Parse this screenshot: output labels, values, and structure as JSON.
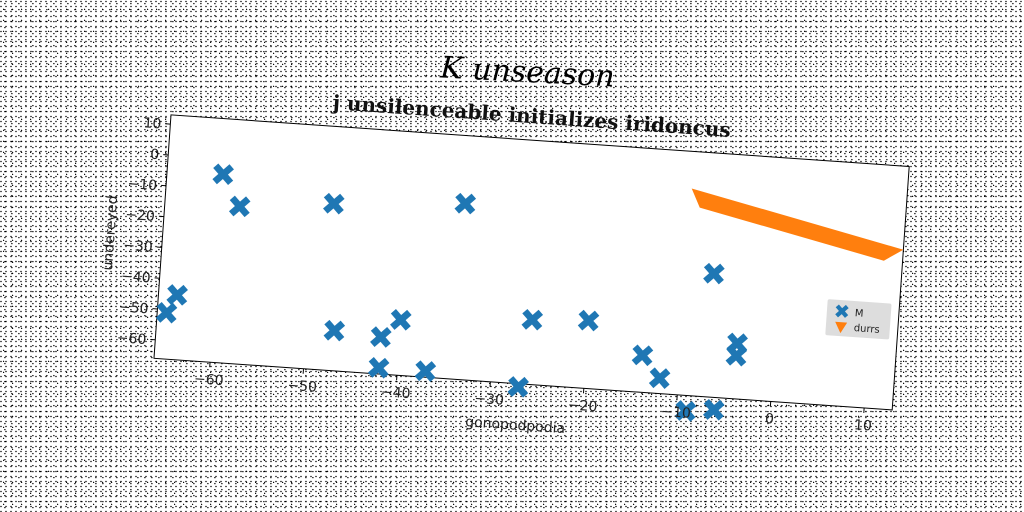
{
  "figure": {
    "main_title": "K unseason"
  },
  "chart_data": {
    "type": "scatter",
    "title": "j unsilenceable initializes iridoncus",
    "xlabel": "gonopodpodia",
    "ylabel": "undereyed",
    "xlim": [
      -66,
      13
    ],
    "ylim": [
      -66,
      13
    ],
    "xticks": [
      -60,
      -50,
      -40,
      -30,
      -20,
      -10,
      0,
      10
    ],
    "yticks": [
      10,
      0,
      -10,
      -20,
      -30,
      -40,
      -50,
      -60
    ],
    "grid": false,
    "legend_position": "center-right",
    "series": [
      {
        "name": "M",
        "marker": "x",
        "color": "#1f77b4",
        "points": [
          [
            -60,
            -5
          ],
          [
            -58,
            -15
          ],
          [
            -48,
            -12
          ],
          [
            -34,
            -9
          ],
          [
            -64,
            -45
          ],
          [
            -65,
            -51
          ],
          [
            -47,
            -53
          ],
          [
            -42,
            -54
          ],
          [
            -40,
            -48
          ],
          [
            -42,
            -64
          ],
          [
            -37,
            -64
          ],
          [
            -26,
            -45
          ],
          [
            -20,
            -44
          ],
          [
            -27,
            -67
          ],
          [
            -14,
            -54
          ],
          [
            -12,
            -61
          ],
          [
            -7,
            -26
          ],
          [
            -4,
            -48
          ],
          [
            -4,
            -52
          ],
          [
            -9,
            -71
          ],
          [
            -6,
            -70
          ]
        ]
      },
      {
        "name": "durrs",
        "marker": "v",
        "color": "#ff7f0e",
        "shape": "band",
        "points": [
          [
            -10,
            1
          ],
          [
            13,
            -14
          ],
          [
            11,
            -18
          ],
          [
            -9,
            -5
          ]
        ]
      }
    ]
  }
}
